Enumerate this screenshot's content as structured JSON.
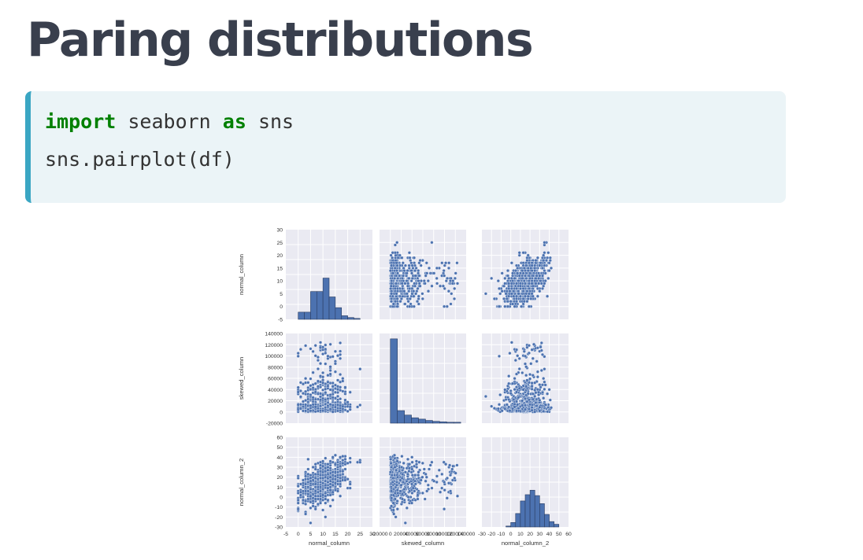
{
  "slide": {
    "title": "Paring distributions"
  },
  "code": {
    "lines": [
      [
        {
          "text": "import",
          "kind": "keyword"
        },
        {
          "text": " seaborn ",
          "kind": "plain"
        },
        {
          "text": "as",
          "kind": "keyword"
        },
        {
          "text": " sns",
          "kind": "plain"
        }
      ],
      [
        {
          "text": "sns.pairplot(df)",
          "kind": "plain"
        }
      ]
    ],
    "keyword_color": "#008000",
    "accent_color": "#3aa6c3"
  },
  "chart_data": {
    "type": "pairplot",
    "variables": [
      "normal_column",
      "skewed_column",
      "normal_column_2"
    ],
    "axes": {
      "normal_column": {
        "lim": [
          -5,
          30
        ],
        "ticks": [
          -5,
          0,
          5,
          10,
          15,
          20,
          25,
          30
        ]
      },
      "skewed_column": {
        "lim": [
          -20000,
          140000
        ],
        "ticks": [
          -20000,
          0,
          20000,
          40000,
          60000,
          80000,
          100000,
          120000,
          140000
        ]
      },
      "normal_column_2": {
        "lim": [
          -30,
          60
        ],
        "ticks": [
          -30,
          -20,
          -10,
          0,
          10,
          20,
          30,
          40,
          50,
          60
        ]
      }
    },
    "diagonal_histograms": {
      "normal_column": {
        "bin_edges": [
          0,
          2.5,
          5,
          7.5,
          10,
          12.5,
          15,
          17.5,
          20,
          22.5,
          25
        ],
        "relative_heights": [
          0.08,
          0.08,
          0.31,
          0.31,
          0.46,
          0.25,
          0.13,
          0.04,
          0.02,
          0.01
        ]
      },
      "skewed_column": {
        "bin_edges": [
          0,
          13000,
          26000,
          39000,
          52000,
          65000,
          78000,
          91000,
          104000,
          117000,
          130000
        ],
        "relative_heights": [
          0.94,
          0.14,
          0.09,
          0.06,
          0.045,
          0.03,
          0.02,
          0.015,
          0.01,
          0.01
        ]
      },
      "normal_column_2": {
        "bin_edges": [
          -5,
          0,
          5,
          10,
          15,
          20,
          25,
          30,
          35,
          40,
          45,
          50
        ],
        "relative_heights": [
          0.01,
          0.05,
          0.15,
          0.29,
          0.36,
          0.41,
          0.35,
          0.26,
          0.14,
          0.06,
          0.03
        ]
      }
    },
    "scatter_description": "Off-diagonal panels are scatter plots of every variable pair; ~1000 observations",
    "style": {
      "panel_background": "#eaeaf2",
      "grid_color": "#ffffff",
      "mark_color": "#4c72b0",
      "mark_edge": "#ffffff",
      "bar_edge": "#2a3c60"
    }
  }
}
